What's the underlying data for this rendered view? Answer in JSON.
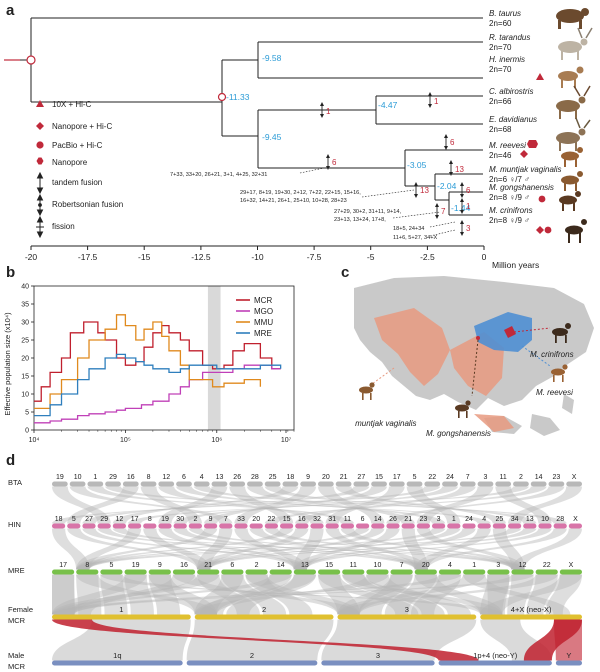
{
  "panels": {
    "a": "a",
    "b": "b",
    "c": "c",
    "d": "d"
  },
  "tree": {
    "species": [
      {
        "name": "B. taurus",
        "chrom": "2n=60"
      },
      {
        "name": "R. tarandus",
        "chrom": "2n=70"
      },
      {
        "name": "H. inermis",
        "chrom": "2n=70"
      },
      {
        "name": "C. albirostris",
        "chrom": "2n=66"
      },
      {
        "name": "E. davidianus",
        "chrom": "2n=68"
      },
      {
        "name": "M. reevesi",
        "chrom": "2n=46"
      },
      {
        "name": "M. muntjak vaginalis",
        "chrom": "2n=6 ♀/7 ♂"
      },
      {
        "name": "M. gongshanensis",
        "chrom": "2n=8 ♀/9 ♂"
      },
      {
        "name": "M. crinifrons",
        "chrom": "2n=8 ♀/9 ♂"
      }
    ],
    "node_ages": [
      "-11.33",
      "-9.58",
      "-9.45",
      "-4.47",
      "-3.05",
      "-2.04",
      "-1.44"
    ],
    "fusion_counts": [
      "1",
      "1",
      "6",
      "6",
      "13",
      "13",
      "7",
      "6",
      "1",
      "3"
    ],
    "fusion_notes": [
      "7+33, 33+20, 26+21, 3+1, 4+25, 32+31",
      "29+17, 8+19, 19+30, 2+12, 7+22, 22+15, 15+16,",
      "16+32, 14+21, 26+1, 25+10, 10+28, 28+23",
      "27+29, 30+2, 31+11, 9+14,",
      "23+13, 13+24, 17+8,",
      "18+5, 24+34",
      "11+6, 5+27, 34+X"
    ],
    "axis_ticks": [
      "-20",
      "-17.5",
      "-15",
      "-12.5",
      "-10",
      "-7.5",
      "-5",
      "-2.5",
      "0"
    ],
    "axis_unit": "Million years",
    "legend": [
      {
        "label": "10X + Hi-C",
        "shape": "triangle"
      },
      {
        "label": "Nanopore + Hi-C",
        "shape": "diamond"
      },
      {
        "label": "PacBio + Hi-C",
        "shape": "circle"
      },
      {
        "label": "Nanopore",
        "shape": "hexagon"
      },
      {
        "label": "tandem fusion",
        "shape": "arrow-tandem"
      },
      {
        "label": "Robertsonian fusion",
        "shape": "arrow-rob"
      },
      {
        "label": "fission",
        "shape": "arrow-fission"
      }
    ],
    "colors": {
      "accent": "#c0293a",
      "node_age": "#2b9bd6"
    }
  },
  "chart_data": {
    "type": "line",
    "ylabel": "Effective population size (x10⁴)",
    "xlabel": "",
    "y_ticks": [
      "0",
      "5",
      "10",
      "15",
      "20",
      "25",
      "30",
      "35",
      "40"
    ],
    "x_ticks": [
      "10⁴",
      "10⁵",
      "10⁶",
      "10⁷"
    ],
    "ylim": [
      0,
      40
    ],
    "xlim": [
      10000,
      7000000
    ],
    "x_scale": "log",
    "shaded_band": [
      800000,
      1100000
    ],
    "series": [
      {
        "name": "MCR",
        "color": "#c0202e",
        "values": [
          [
            10000,
            8
          ],
          [
            12000,
            12
          ],
          [
            15000,
            16
          ],
          [
            20000,
            20
          ],
          [
            25000,
            27
          ],
          [
            30000,
            27
          ],
          [
            35000,
            30
          ],
          [
            40000,
            30
          ],
          [
            50000,
            27
          ],
          [
            60000,
            25
          ],
          [
            80000,
            20
          ],
          [
            100000,
            18
          ],
          [
            130000,
            19
          ],
          [
            160000,
            23
          ],
          [
            200000,
            27
          ],
          [
            250000,
            29
          ],
          [
            300000,
            27
          ],
          [
            400000,
            25
          ],
          [
            500000,
            22
          ],
          [
            700000,
            18
          ],
          [
            900000,
            17
          ],
          [
            1200000,
            18
          ],
          [
            1500000,
            22
          ],
          [
            2000000,
            24
          ],
          [
            3000000,
            20
          ],
          [
            4000000,
            17
          ],
          [
            5000000,
            17
          ]
        ]
      },
      {
        "name": "MGO",
        "color": "#c040b8",
        "values": [
          [
            10000,
            2
          ],
          [
            15000,
            2.5
          ],
          [
            20000,
            3
          ],
          [
            30000,
            4
          ],
          [
            40000,
            4.5
          ],
          [
            60000,
            5
          ],
          [
            80000,
            5.5
          ],
          [
            100000,
            6
          ],
          [
            150000,
            7
          ],
          [
            200000,
            8
          ],
          [
            300000,
            10
          ],
          [
            400000,
            12
          ],
          [
            500000,
            14
          ],
          [
            700000,
            16
          ],
          [
            1000000,
            16
          ],
          [
            1500000,
            17
          ],
          [
            2000000,
            18
          ],
          [
            3000000,
            18
          ],
          [
            4000000,
            17
          ],
          [
            5000000,
            17
          ]
        ]
      },
      {
        "name": "MMU",
        "color": "#e08a1e",
        "values": [
          [
            10000,
            6
          ],
          [
            15000,
            10
          ],
          [
            20000,
            14
          ],
          [
            30000,
            20
          ],
          [
            40000,
            25
          ],
          [
            50000,
            25
          ],
          [
            60000,
            28
          ],
          [
            80000,
            32
          ],
          [
            100000,
            29
          ],
          [
            130000,
            25
          ],
          [
            160000,
            28
          ],
          [
            200000,
            30
          ],
          [
            250000,
            26
          ],
          [
            300000,
            22
          ],
          [
            400000,
            18
          ],
          [
            500000,
            14
          ],
          [
            700000,
            14
          ],
          [
            900000,
            12
          ],
          [
            1200000,
            13
          ],
          [
            1500000,
            13
          ],
          [
            2000000,
            14
          ],
          [
            3000000,
            12
          ]
        ]
      },
      {
        "name": "MRE",
        "color": "#2f7fbd",
        "values": [
          [
            10000,
            4
          ],
          [
            15000,
            7
          ],
          [
            20000,
            10
          ],
          [
            30000,
            14
          ],
          [
            40000,
            17
          ],
          [
            60000,
            20
          ],
          [
            80000,
            21
          ],
          [
            100000,
            20
          ],
          [
            130000,
            19
          ],
          [
            160000,
            18
          ],
          [
            200000,
            17
          ],
          [
            300000,
            16
          ],
          [
            400000,
            17
          ],
          [
            500000,
            18
          ],
          [
            700000,
            18
          ],
          [
            1000000,
            17
          ],
          [
            1500000,
            17
          ],
          [
            2000000,
            17
          ],
          [
            3000000,
            18
          ],
          [
            5000000,
            17
          ]
        ]
      }
    ]
  },
  "map": {
    "labels": [
      "M. crinifrons",
      "M. reevesi",
      "M. muntjak vaginalis",
      "M. gongshanensis"
    ]
  },
  "synteny": {
    "rows": [
      {
        "label": "BTA",
        "color": "#b8b8b8",
        "numbers": [
          "19",
          "10",
          "1",
          "29",
          "16",
          "8",
          "12",
          "6",
          "4",
          "13",
          "26",
          "28",
          "25",
          "18",
          "9",
          "20",
          "21",
          "27",
          "15",
          "17",
          "5",
          "22",
          "24",
          "7",
          "3",
          "11",
          "2",
          "14",
          "23",
          "X"
        ]
      },
      {
        "label": "HIN",
        "color": "#d874a8",
        "numbers": [
          "18",
          "5",
          "27",
          "29",
          "12",
          "17",
          "8",
          "19",
          "30",
          "2",
          "9",
          "7",
          "33",
          "20",
          "22",
          "15",
          "16",
          "32",
          "31",
          "11",
          "6",
          "14",
          "26",
          "21",
          "23",
          "3",
          "1",
          "24",
          "4",
          "25",
          "34",
          "13",
          "10",
          "28",
          "X"
        ]
      },
      {
        "label": "MRE",
        "color": "#78c04a",
        "numbers": [
          "17",
          "8",
          "5",
          "19",
          "9",
          "16",
          "21",
          "6",
          "2",
          "14",
          "13",
          "15",
          "11",
          "10",
          "7",
          "20",
          "4",
          "1",
          "3",
          "12",
          "22",
          "X"
        ]
      },
      {
        "label_top": "Female",
        "label": "MCR",
        "color": "#e0c030",
        "numbers": [
          "1",
          "2",
          "3",
          "4+X (neo-X)"
        ]
      },
      {
        "label_top": "Male",
        "label": "MCR",
        "color": "#7a8fc0",
        "numbers": [
          "1q",
          "2",
          "3",
          "1p+4 (neo-Y)",
          "Y"
        ]
      }
    ]
  }
}
